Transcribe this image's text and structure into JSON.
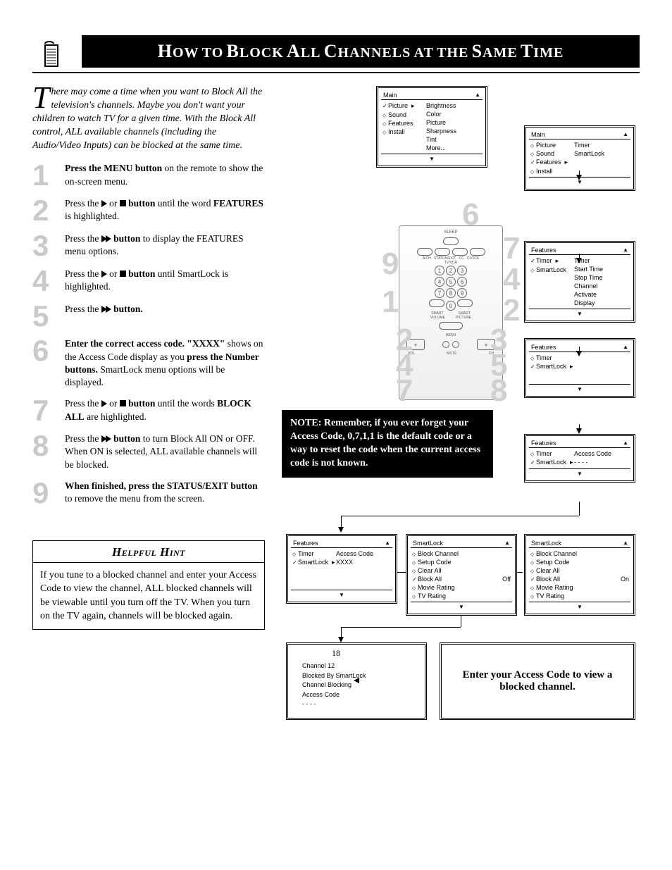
{
  "page_number": "18",
  "title": {
    "caps": [
      "H",
      "T",
      "B",
      "A",
      "C",
      "S",
      "T"
    ],
    "rest": [
      "OW",
      " ",
      "O",
      " ",
      "LOCK",
      " ",
      "LL",
      " ",
      "HANNELS",
      " ",
      "AT",
      " ",
      "THE",
      " ",
      "AME",
      " ",
      "IME"
    ]
  },
  "title_full": "How to Block All Channels at the Same Time",
  "intro": "here may come a time when you want to Block All the television's channels. Maybe you don't want your children to watch TV for a given time. With the Block All control, ALL available channels (including the Audio/Video Inputs) can be blocked at the same time.",
  "steps": [
    {
      "n": "1",
      "pre_bold": "Press the MENU button",
      "post": " on the remote to show the on-screen menu."
    },
    {
      "n": "2",
      "frags": [
        {
          "t": "Press the ",
          "b": false
        },
        {
          "icon": "tri"
        },
        {
          "t": " or ",
          "b": false
        },
        {
          "icon": "sq"
        },
        {
          "t": " button",
          "b": true
        },
        {
          "t": " until the word ",
          "b": false
        },
        {
          "t": "FEATURES",
          "b": true
        },
        {
          "t": " is highlighted.",
          "b": false
        }
      ]
    },
    {
      "n": "3",
      "frags": [
        {
          "t": "Press the ",
          "b": false
        },
        {
          "icon": "dtri"
        },
        {
          "t": " button",
          "b": true
        },
        {
          "t": " to display the FEATURES menu options.",
          "b": false
        }
      ]
    },
    {
      "n": "4",
      "frags": [
        {
          "t": "Press the ",
          "b": false
        },
        {
          "icon": "tri"
        },
        {
          "t": " or ",
          "b": false
        },
        {
          "icon": "sq"
        },
        {
          "t": " button",
          "b": true
        },
        {
          "t": " until SmartLock is highlighted.",
          "b": false
        }
      ]
    },
    {
      "n": "5",
      "frags": [
        {
          "t": "Press the ",
          "b": false
        },
        {
          "icon": "dtri"
        },
        {
          "t": " button.",
          "b": true
        }
      ]
    },
    {
      "n": "6",
      "frags": [
        {
          "t": "Enter the correct access code. \"XXXX\"",
          "b": true
        },
        {
          "t": " shows on the Access Code display as you ",
          "b": false
        },
        {
          "t": "press the Number buttons.",
          "b": true
        },
        {
          "t": " SmartLock menu options will be displayed.",
          "b": false
        }
      ]
    },
    {
      "n": "7",
      "frags": [
        {
          "t": "Press the ",
          "b": false
        },
        {
          "icon": "tri"
        },
        {
          "t": " or ",
          "b": false
        },
        {
          "icon": "sq"
        },
        {
          "t": " button",
          "b": true
        },
        {
          "t": " until the words ",
          "b": false
        },
        {
          "t": "BLOCK ALL",
          "b": true
        },
        {
          "t": " are highlighted.",
          "b": false
        }
      ]
    },
    {
      "n": "8",
      "frags": [
        {
          "t": "Press the ",
          "b": false
        },
        {
          "icon": "dtri"
        },
        {
          "t": " button",
          "b": true
        },
        {
          "t": " to turn Block All ON or OFF. When ON is selected, ALL available channels will be blocked.",
          "b": false
        }
      ]
    },
    {
      "n": "9",
      "frags": [
        {
          "t": "When finished, press the STATUS/EXIT button",
          "b": true
        },
        {
          "t": " to remove the menu from the screen.",
          "b": false
        }
      ]
    }
  ],
  "hint_title": "Helpful Hint",
  "hint_body": "If you tune to a blocked channel and enter your Access Code to view the channel, ALL blocked channels will be viewable until you turn off the TV. When you turn on the TV again, channels will be blocked again.",
  "note": "NOTE: Remember, if you ever forget your Access Code, 0,7,1,1 is the default code or a way to reset the code when the current access code is not known.",
  "osd": {
    "main1": {
      "title": "Main",
      "left": [
        [
          "chk",
          "Picture"
        ],
        [
          "diam",
          "Sound"
        ],
        [
          "diam",
          "Features"
        ],
        [
          "diam",
          "Install"
        ]
      ],
      "right": [
        "Brightness",
        "Color",
        "Picture",
        "Sharpness",
        "Tint",
        "More..."
      ]
    },
    "main2": {
      "title": "Main",
      "left": [
        [
          "diam",
          "Picture"
        ],
        [
          "diam",
          "Sound"
        ],
        [
          "chk",
          "Features"
        ],
        [
          "diam",
          "Install"
        ]
      ],
      "right": [
        "Timer",
        "SmartLock"
      ]
    },
    "feat1": {
      "title": "Features",
      "left": [
        [
          "chk",
          "Timer"
        ],
        [
          "diam",
          "SmartLock"
        ]
      ],
      "right": [
        "Timer",
        "Start Time",
        "Stop Time",
        "Channel",
        "Activate",
        "Display"
      ]
    },
    "feat2": {
      "title": "Features",
      "left": [
        [
          "diam",
          "Timer"
        ],
        [
          "chk",
          "SmartLock"
        ]
      ],
      "right": []
    },
    "feat3": {
      "title": "Features",
      "left": [
        [
          "diam",
          "Timer"
        ],
        [
          "chk",
          "SmartLock"
        ]
      ],
      "rlabel": "Access Code",
      "rval": "- - - -"
    },
    "feat4": {
      "title": "Features",
      "left": [
        [
          "diam",
          "Timer"
        ],
        [
          "chk",
          "SmartLock"
        ]
      ],
      "rlabel": "Access Code",
      "rval": "XXXX"
    },
    "sl_off": {
      "title": "SmartLock",
      "items": [
        [
          "diam",
          "Block Channel",
          ""
        ],
        [
          "diam",
          "Setup Code",
          ""
        ],
        [
          "diam",
          "Clear All",
          ""
        ],
        [
          "chk",
          "Block All",
          "Off"
        ],
        [
          "diam",
          "Movie Rating",
          ""
        ],
        [
          "diam",
          "TV Rating",
          ""
        ]
      ]
    },
    "sl_on": {
      "title": "SmartLock",
      "items": [
        [
          "diam",
          "Block Channel",
          ""
        ],
        [
          "diam",
          "Setup Code",
          ""
        ],
        [
          "diam",
          "Clear All",
          ""
        ],
        [
          "chk",
          "Block All",
          "On"
        ],
        [
          "diam",
          "Movie Rating",
          ""
        ],
        [
          "diam",
          "TV Rating",
          ""
        ]
      ]
    }
  },
  "final_left": [
    "Channel 12",
    "Blocked By SmartLock",
    "Channel Blocking",
    "Access Code",
    "- - - -"
  ],
  "final_right": "Enter your Access Code to view a blocked channel.",
  "remote_nums": {
    "tl": "9",
    "tr": "6",
    "r1": "7",
    "r2": "4",
    "r3": "2",
    "bl1": "1",
    "l1": "2",
    "l2": "4",
    "l3": "7",
    "rr1": "3",
    "rr2": "5",
    "rr3": "8"
  },
  "colors": {
    "textgray": "#c9c9c9",
    "black": "#000000",
    "white": "#ffffff"
  }
}
